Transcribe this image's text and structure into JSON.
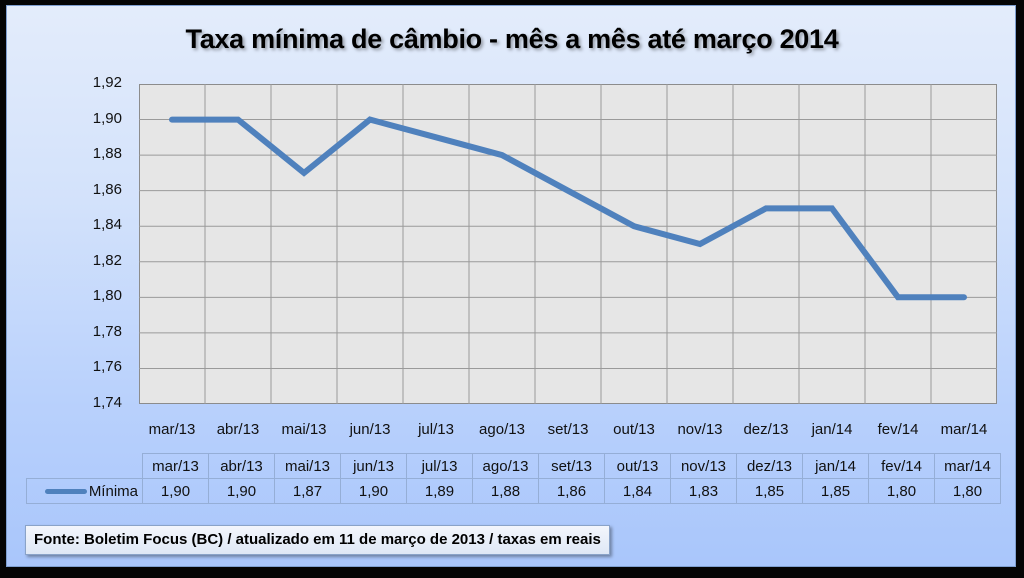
{
  "title": "Taxa mínima de câmbio - mês a mês até março 2014",
  "footer": "Fonte: Boletim Focus (BC) / atualizado  em 11 de março de 2013 / taxas em reais",
  "colors": {
    "line": "#4f81bd",
    "plot_bg": "#e6e6e6",
    "grid": "#9a9a9a",
    "panel_top": "#e3ecfb",
    "panel_bottom": "#a9c6fb"
  },
  "y_ticks": [
    "1,92",
    "1,90",
    "1,88",
    "1,86",
    "1,84",
    "1,82",
    "1,80",
    "1,78",
    "1,76",
    "1,74"
  ],
  "table": {
    "series_label": "Mínima",
    "months": [
      "mar/13",
      "abr/13",
      "mai/13",
      "jun/13",
      "jul/13",
      "ago/13",
      "set/13",
      "out/13",
      "nov/13",
      "dez/13",
      "jan/14",
      "fev/14",
      "mar/14"
    ],
    "values": [
      "1,90",
      "1,90",
      "1,87",
      "1,90",
      "1,89",
      "1,88",
      "1,86",
      "1,84",
      "1,83",
      "1,85",
      "1,85",
      "1,80",
      "1,80"
    ]
  },
  "chart_data": {
    "type": "line",
    "title": "Taxa mínima de câmbio - mês a mês até março 2014",
    "categories": [
      "mar/13",
      "abr/13",
      "mai/13",
      "jun/13",
      "jul/13",
      "ago/13",
      "set/13",
      "out/13",
      "nov/13",
      "dez/13",
      "jan/14",
      "fev/14",
      "mar/14"
    ],
    "series": [
      {
        "name": "Mínima",
        "values": [
          1.9,
          1.9,
          1.87,
          1.9,
          1.89,
          1.88,
          1.86,
          1.84,
          1.83,
          1.85,
          1.85,
          1.8,
          1.8
        ]
      }
    ],
    "xlabel": "",
    "ylabel": "",
    "ylim": [
      1.74,
      1.92
    ],
    "y_step": 0.02,
    "grid": true,
    "legend_position": "data table below chart",
    "annotations": [
      "Fonte: Boletim Focus (BC) / atualizado  em 11 de março de 2013 / taxas em reais"
    ]
  }
}
